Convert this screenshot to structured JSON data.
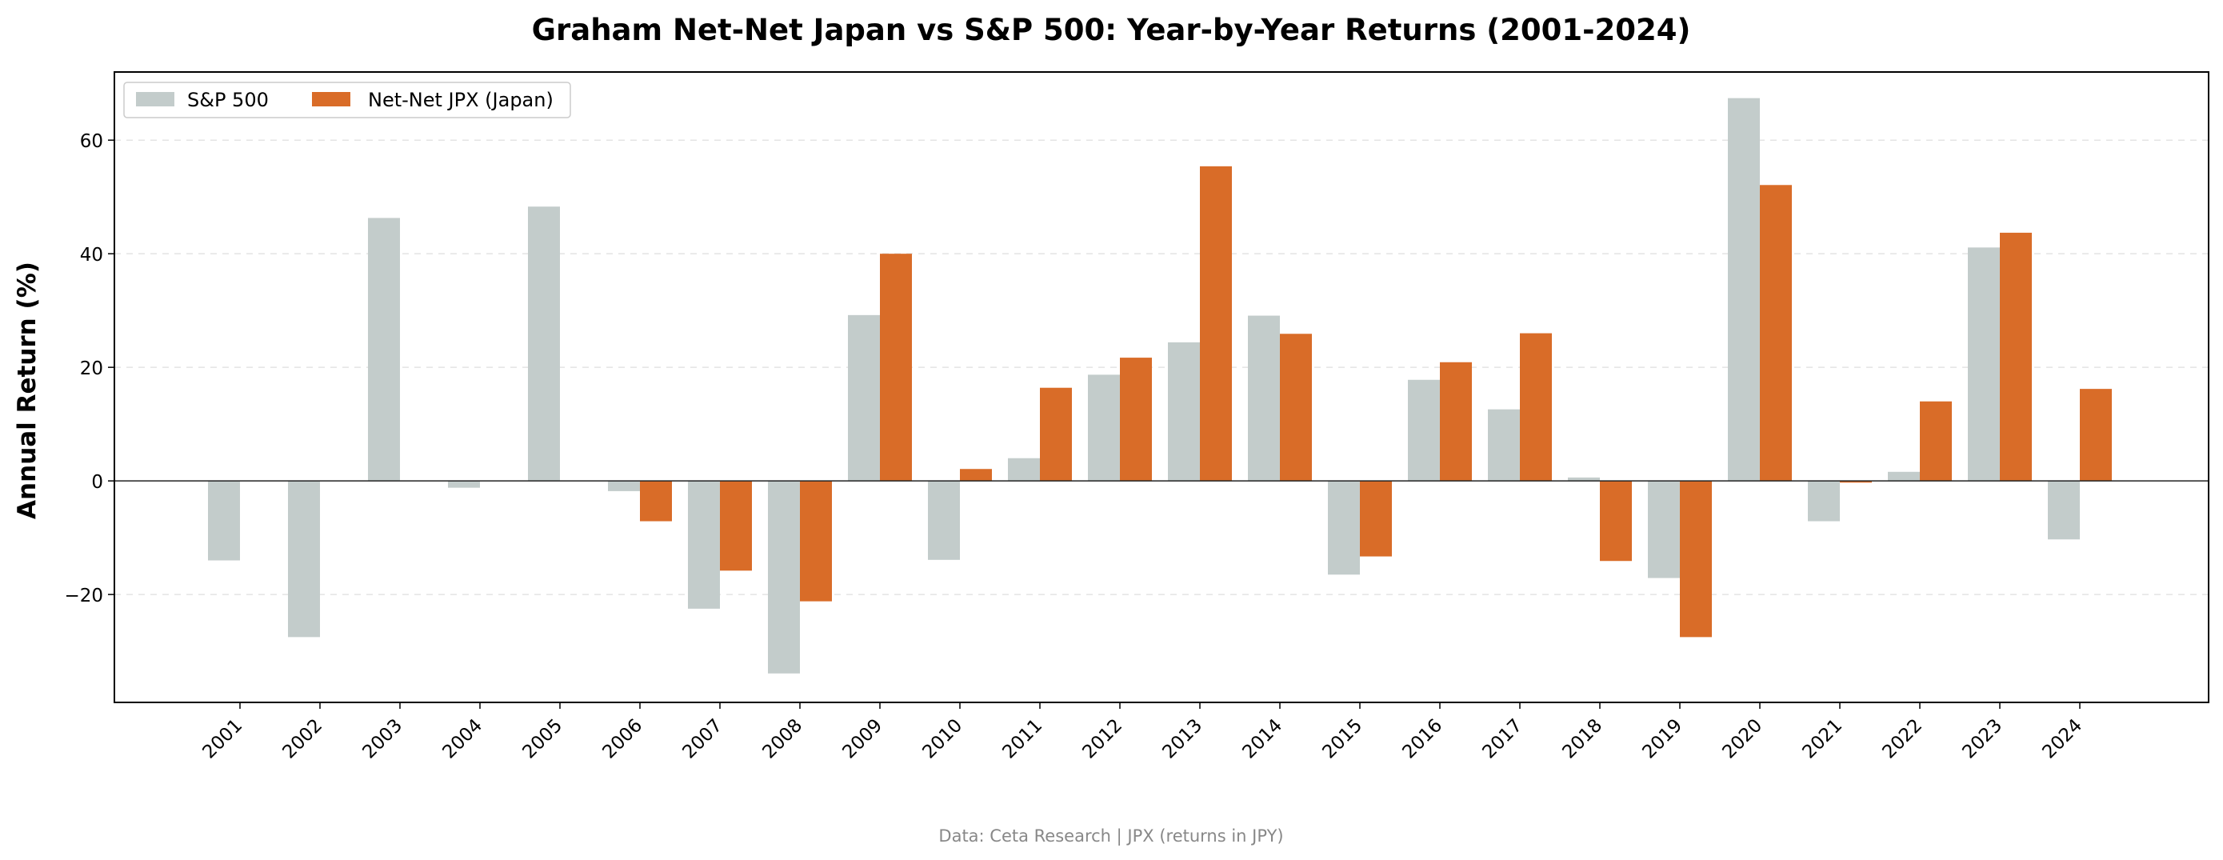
{
  "chart_data": {
    "type": "bar",
    "title": "Graham Net-Net Japan vs S&P 500: Year-by-Year Returns (2001-2024)",
    "ylabel": "Annual Return (%)",
    "xlabel": "",
    "ylim": [
      -39,
      72
    ],
    "yticks": [
      60,
      40,
      20,
      0,
      -20
    ],
    "ytick_labels": [
      "60",
      "40",
      "20",
      "0",
      "−20"
    ],
    "grid": "horizontal dashed",
    "legend_position": "top-left",
    "categories": [
      "2001",
      "2002",
      "2003",
      "2004",
      "2005",
      "2006",
      "2007",
      "2008",
      "2009",
      "2010",
      "2011",
      "2012",
      "2013",
      "2014",
      "2015",
      "2016",
      "2017",
      "2018",
      "2019",
      "2020",
      "2021",
      "2022",
      "2023",
      "2024"
    ],
    "series": [
      {
        "name": "S&P 500",
        "color": "#c3cccb",
        "values": [
          -14.0,
          -27.5,
          46.3,
          -1.2,
          48.3,
          -1.8,
          -22.5,
          -33.9,
          29.2,
          -13.9,
          4.0,
          18.7,
          24.4,
          29.1,
          -16.5,
          17.8,
          12.6,
          0.6,
          -17.1,
          67.4,
          -7.1,
          1.6,
          41.1,
          -10.3
        ]
      },
      {
        "name": "Net-Net JPX (Japan)",
        "color": "#d96c28",
        "values": [
          null,
          null,
          null,
          null,
          null,
          -7.1,
          -15.8,
          -21.2,
          40.0,
          2.1,
          16.4,
          21.7,
          55.4,
          25.9,
          -13.3,
          20.9,
          26.0,
          -14.1,
          -27.5,
          52.1,
          -0.3,
          14.0,
          43.7,
          16.2
        ]
      }
    ],
    "source_note": "Data: Ceta Research | JPX (returns in JPY)"
  }
}
